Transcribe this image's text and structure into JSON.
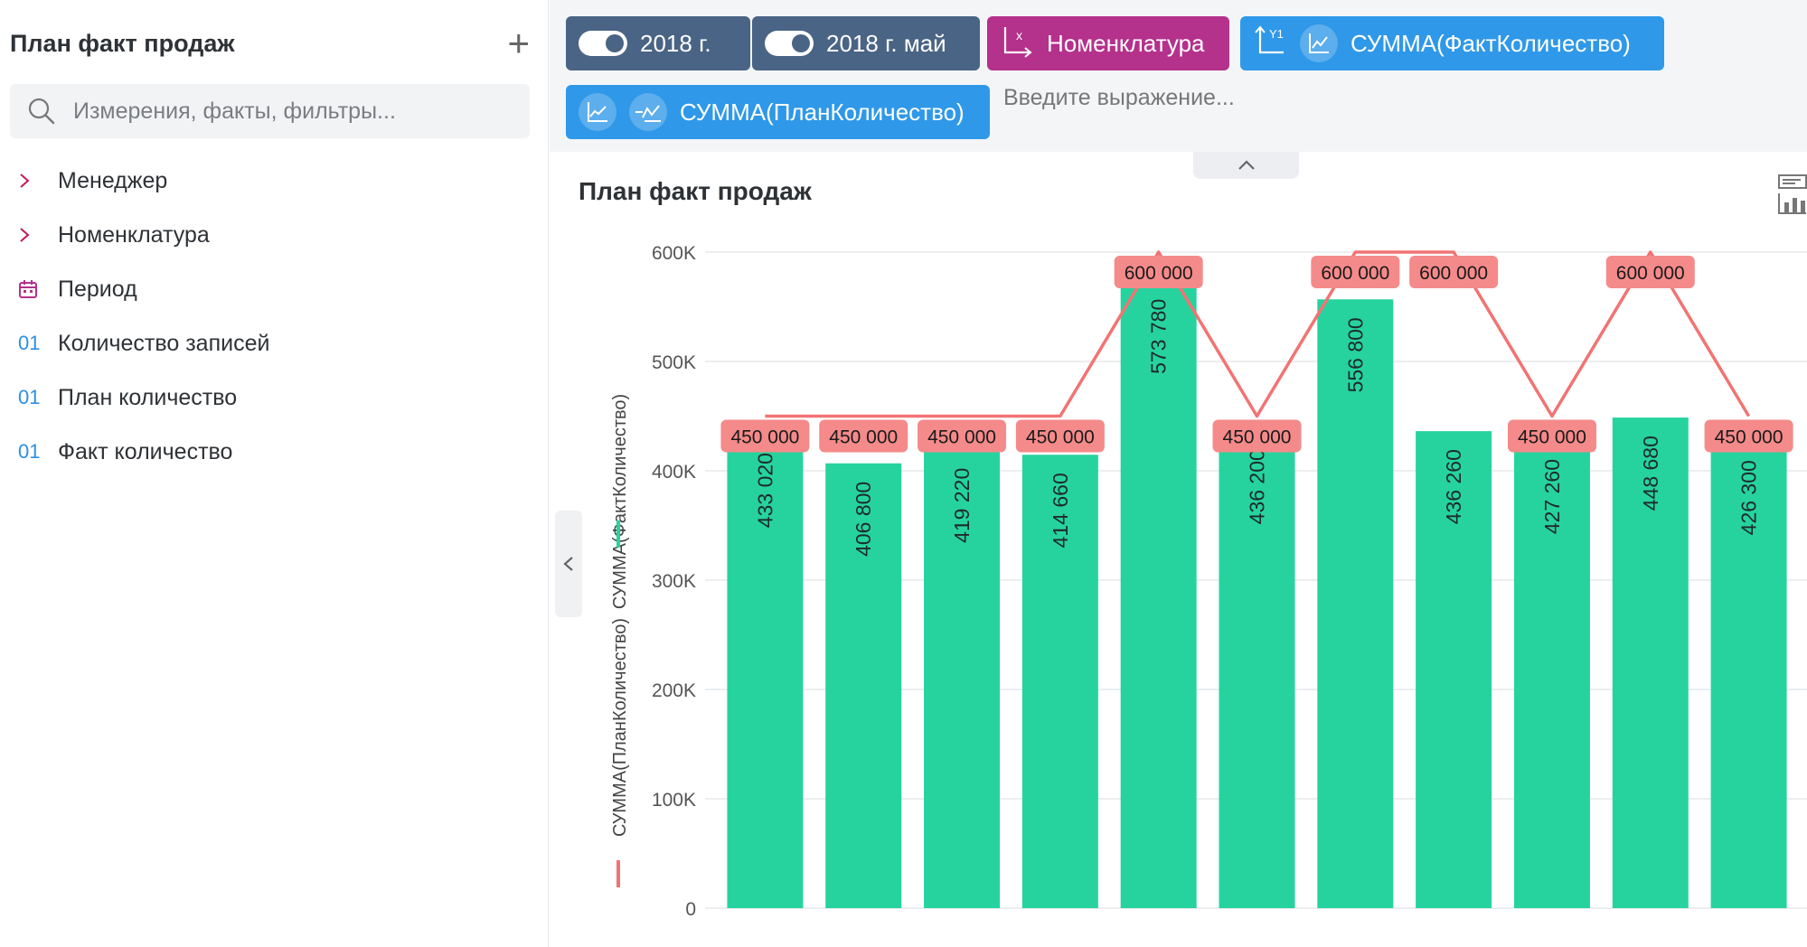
{
  "sidebar": {
    "title": "План факт продаж",
    "search_placeholder": "Измерения, факты, фильтры...",
    "fields": [
      {
        "label": "Менеджер",
        "icon": "chevron-right-icon"
      },
      {
        "label": "Номенклатура",
        "icon": "chevron-right-icon"
      },
      {
        "label": "Период",
        "icon": "calendar-icon"
      },
      {
        "label": "Количество записей",
        "icon": "01"
      },
      {
        "label": "План количество",
        "icon": "01"
      },
      {
        "label": "Факт количество",
        "icon": "01"
      }
    ]
  },
  "toolbar": {
    "chips": [
      {
        "label": "2018 г."
      },
      {
        "label": "2018 г. май"
      },
      {
        "label": "Номенклатура"
      },
      {
        "label": "СУММА(ФактКоличество)"
      },
      {
        "label": "СУММА(ПланКоличество)"
      }
    ],
    "expression_placeholder": "Введите выражение..."
  },
  "colors": {
    "chip_dark": "#4a6485",
    "chip_magenta": "#b4318c",
    "chip_blue": "#2f98e8",
    "bar": "#26d39e",
    "line": "#f27373"
  },
  "panel": {
    "title": "План факт продаж"
  },
  "chart_data": {
    "type": "bar",
    "title": "План факт продаж",
    "ylim": [
      0,
      600000
    ],
    "y_ticks": [
      "0",
      "100K",
      "200K",
      "300K",
      "400K",
      "500K",
      "600K"
    ],
    "y_tick_values": [
      0,
      100000,
      200000,
      300000,
      400000,
      500000,
      600000
    ],
    "y_axis_labels": [
      "СУММА(ФактКоличество)",
      "СУММА(ПланКоличество)"
    ],
    "grid": true,
    "category_count": 11,
    "series": [
      {
        "name": "СУММА(ФактКоличество)",
        "kind": "bar",
        "values": [
          433020,
          406800,
          419220,
          414660,
          573780,
          436200,
          556800,
          436260,
          427260,
          448680,
          426300
        ],
        "labels": [
          "433 020",
          "406 800",
          "419 220",
          "414 660",
          "573 780",
          "436 200",
          "556 800",
          "436 260",
          "427 260",
          "448 680",
          "426 300"
        ]
      },
      {
        "name": "СУММА(ПланКоличество)",
        "kind": "line",
        "values": [
          450000,
          450000,
          450000,
          450000,
          600000,
          450000,
          600000,
          600000,
          450000,
          600000,
          450000
        ],
        "labels": [
          "450 000",
          "450 000",
          "450 000",
          "450 000",
          "600 000",
          "450 000",
          "600 000",
          "600 000",
          "450 000",
          "600 000",
          "450 000"
        ]
      }
    ]
  }
}
